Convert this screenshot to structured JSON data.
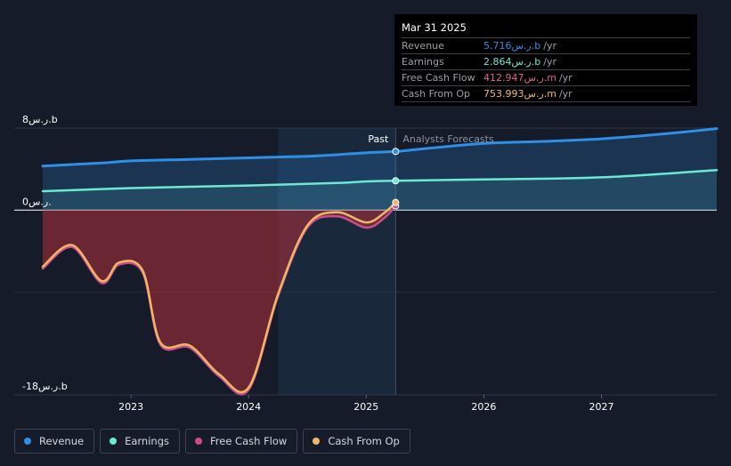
{
  "tooltip": {
    "date": "Mar 31 2025",
    "rows": [
      {
        "label": "Revenue",
        "value": "5.716ر.س.b",
        "unit": "/yr",
        "color": "#2f8fe6"
      },
      {
        "label": "Earnings",
        "value": "2.864ر.س.b",
        "unit": "/yr",
        "color": "#6de8d2"
      },
      {
        "label": "Free Cash Flow",
        "value": "412.947ر.س.m",
        "unit": "/yr",
        "color": "#e05f95"
      },
      {
        "label": "Cash From Op",
        "value": "753.993ر.س.m",
        "unit": "/yr",
        "color": "#f2b765"
      }
    ]
  },
  "legend": [
    {
      "label": "Revenue",
      "color": "#2f8fe6"
    },
    {
      "label": "Earnings",
      "color": "#6de8d2"
    },
    {
      "label": "Free Cash Flow",
      "color": "#c94d8a"
    },
    {
      "label": "Cash From Op",
      "color": "#f2b765"
    }
  ],
  "chart_data": {
    "type": "line",
    "y_tick_labels": [
      "8ر.س.b",
      "0ر.س.",
      "-18ر.س.b"
    ],
    "ylim": [
      -18,
      8
    ],
    "xlim": [
      2022.25,
      2027.98
    ],
    "x_tick_labels": [
      "2023",
      "2024",
      "2025",
      "2026",
      "2027"
    ],
    "x_ticks": [
      2023,
      2024,
      2025,
      2026,
      2027
    ],
    "divider_x": 2025.25,
    "past_label": "Past",
    "forecast_label": "Analysts Forecasts",
    "grid": true,
    "legend_position": "bottom-left",
    "series": [
      {
        "name": "Revenue",
        "color": "#2f8fe6",
        "x": [
          2022.25,
          2022.75,
          2023.0,
          2023.5,
          2024.0,
          2024.5,
          2024.75,
          2025.0,
          2025.25,
          2025.5,
          2026.0,
          2026.5,
          2027.0,
          2027.5,
          2027.98
        ],
        "y": [
          4.3,
          4.6,
          4.8,
          4.95,
          5.1,
          5.25,
          5.4,
          5.6,
          5.72,
          6.0,
          6.5,
          6.7,
          6.95,
          7.4,
          7.95
        ]
      },
      {
        "name": "Earnings",
        "color": "#6de8d2",
        "x": [
          2022.25,
          2023.0,
          2024.0,
          2024.75,
          2025.0,
          2025.25,
          2026.0,
          2027.0,
          2027.98
        ],
        "y": [
          1.85,
          2.15,
          2.4,
          2.65,
          2.8,
          2.86,
          3.0,
          3.2,
          3.9
        ]
      },
      {
        "name": "Free Cash Flow",
        "color": "#c94d8a",
        "x": [
          2022.25,
          2022.5,
          2022.75,
          2022.9,
          2023.1,
          2023.25,
          2023.5,
          2023.75,
          2024.0,
          2024.25,
          2024.5,
          2024.75,
          2025.0,
          2025.15,
          2025.25
        ],
        "y": [
          -5.7,
          -3.6,
          -7.1,
          -5.3,
          -6.1,
          -13.1,
          -13.4,
          -16.2,
          -17.5,
          -8.4,
          -1.7,
          -0.6,
          -1.7,
          -0.8,
          0.41
        ]
      },
      {
        "name": "Cash From Op",
        "color": "#f2b765",
        "x": [
          2022.25,
          2022.5,
          2022.75,
          2022.9,
          2023.1,
          2023.25,
          2023.5,
          2023.75,
          2024.0,
          2024.25,
          2024.5,
          2024.75,
          2025.0,
          2025.15,
          2025.25
        ],
        "y": [
          -5.5,
          -3.4,
          -6.9,
          -5.1,
          -5.9,
          -12.9,
          -13.2,
          -16.0,
          -17.3,
          -8.2,
          -1.5,
          -0.2,
          -1.2,
          -0.3,
          0.75
        ]
      }
    ]
  }
}
